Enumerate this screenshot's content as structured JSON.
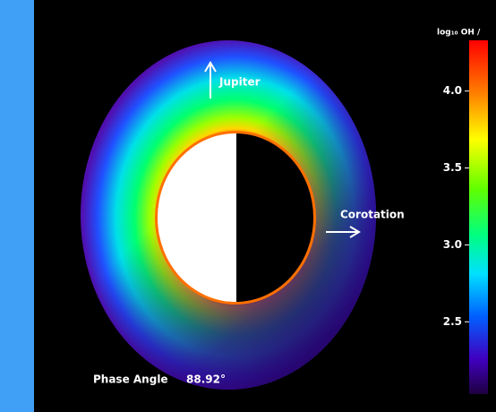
{
  "colorbar": {
    "title": "log₁₀ OH /",
    "lim": [
      2.03,
      4.33
    ],
    "ticks": [
      {
        "value": 4,
        "label": "4.0"
      },
      {
        "value": 3.5,
        "label": "3.5"
      },
      {
        "value": 3,
        "label": "3.0"
      },
      {
        "value": 2.5,
        "label": "2.5"
      }
    ]
  },
  "annotations": {
    "jupiter": "Jupiter",
    "corotation": "Corotation"
  },
  "phase_angle": {
    "label": "Phase Angle",
    "value": "88.92°"
  }
}
